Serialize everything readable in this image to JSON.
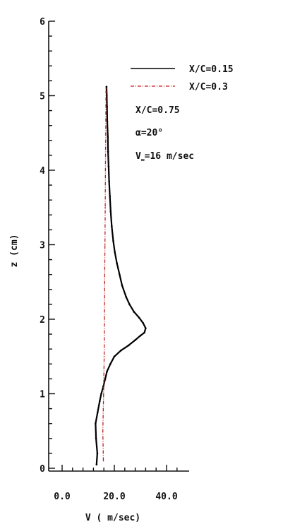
{
  "chart_data": {
    "type": "line",
    "xlabel": "V ( m/sec)",
    "ylabel": "z (cm)",
    "xlim": [
      0,
      50
    ],
    "ylim": [
      0,
      6
    ],
    "x_ticks": [
      "0.0",
      "20.0",
      "40.0"
    ],
    "y_ticks": [
      "0",
      "1",
      "2",
      "3",
      "4",
      "5",
      "6"
    ],
    "grid": false,
    "legend_position": "top-right",
    "series": [
      {
        "name": "X/C=0.15",
        "style": "solid",
        "color": "#000000",
        "x": [
          13.2,
          13.5,
          13.0,
          12.8,
          13.6,
          14.4,
          15.0,
          15.8,
          16.5,
          17.2,
          18.5,
          20.0,
          22.5,
          25.5,
          28.0,
          30.0,
          31.5,
          32.0,
          31.0,
          29.5,
          27.5,
          25.8,
          24.5,
          23.0,
          22.0,
          21.0,
          20.2,
          19.6,
          19.0,
          18.6,
          18.3,
          18.0,
          17.8,
          17.6,
          17.5,
          17.3,
          17.2,
          17.1,
          17.0
        ],
        "y": [
          0.05,
          0.2,
          0.4,
          0.6,
          0.75,
          0.9,
          1.0,
          1.1,
          1.2,
          1.3,
          1.4,
          1.5,
          1.58,
          1.65,
          1.72,
          1.78,
          1.82,
          1.88,
          1.95,
          2.02,
          2.1,
          2.2,
          2.3,
          2.45,
          2.6,
          2.75,
          2.9,
          3.05,
          3.25,
          3.45,
          3.65,
          3.85,
          4.05,
          4.25,
          4.45,
          4.65,
          4.85,
          5.0,
          5.12
        ]
      },
      {
        "name": "X/C=0.3",
        "style": "dash-dot",
        "color": "#c02020",
        "x": [
          15.8,
          15.6,
          15.9,
          16.1,
          16.2,
          16.3,
          16.4,
          16.5,
          16.6,
          16.7,
          16.8
        ],
        "y": [
          0.1,
          0.5,
          1.0,
          1.5,
          2.0,
          2.5,
          3.0,
          3.5,
          4.0,
          4.5,
          5.1
        ]
      }
    ],
    "annotations": [
      "X/C=0.75",
      "α=20°",
      "V∞=16 m/sec"
    ]
  },
  "legend": {
    "entries": [
      "X/C=0.15",
      "X/C=0.3"
    ],
    "note_xc": "X/C=0.75",
    "note_alpha": "α=20°",
    "note_v_prefix": "V",
    "note_v_sub": "∞",
    "note_v_suffix": "=16 m/sec"
  }
}
